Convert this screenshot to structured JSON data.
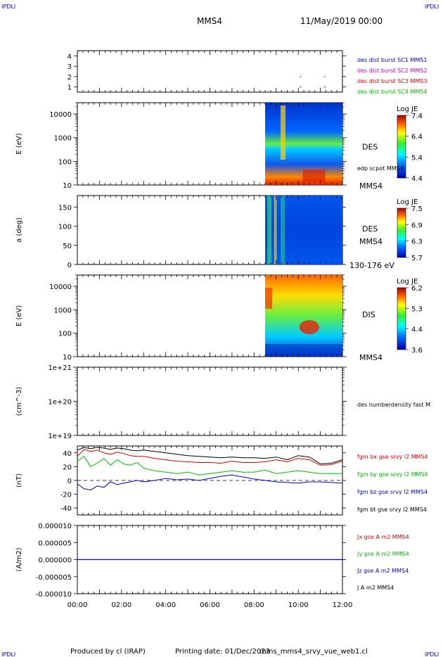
{
  "header": {
    "corner_tl": "IPDLI",
    "corner_tr": "IPDLI",
    "corner_bl": "IPDLI",
    "corner_br": "IPDLI",
    "spacecraft": "MMS4",
    "date": "11/May/2019 00:00"
  },
  "footer": {
    "producer": "Produced by cl (IRAP)",
    "printing_date": "Printing date: 01/Dec/2023",
    "file": "mms_mms4_srvy_vue_web1.cl"
  },
  "time_axis": {
    "labels": [
      "00:00",
      "02:00",
      "04:00",
      "06:00",
      "08:00",
      "10:00",
      "12:00"
    ],
    "range_hours": [
      0,
      12
    ]
  },
  "colors": {
    "blue": "#0000cc",
    "magenta": "#cc00cc",
    "red": "#dd0000",
    "green": "#00bb00",
    "black": "#000000",
    "header_corner": "#0000cc"
  },
  "chart_data": [
    {
      "type": "scatter",
      "panel": "burst",
      "ylim": [
        0.5,
        4.5
      ],
      "yticks": [
        "1",
        "2",
        "3",
        "4"
      ],
      "legend": [
        {
          "label": "des dist burst SC1 MMS1",
          "color": "#0000cc"
        },
        {
          "label": "des dist burst SC2 MMS2",
          "color": "#cc00cc"
        },
        {
          "label": "des dist burst SC3 MMS3",
          "color": "#dd0000"
        },
        {
          "label": "des dist burst SC4 MMS4",
          "color": "#00bb00"
        }
      ],
      "points": [
        {
          "x": 10.1,
          "y": 2.0,
          "color": "#dd0000"
        },
        {
          "x": 11.2,
          "y": 2.0,
          "color": "#dd0000"
        },
        {
          "x": 10.1,
          "y": 1.0,
          "color": "#0000cc"
        },
        {
          "x": 11.2,
          "y": 1.0,
          "color": "#0000cc"
        }
      ]
    },
    {
      "type": "heatmap",
      "panel": "des_energy",
      "ylabel": "E (eV)",
      "yscale": "log",
      "ylim": [
        10,
        30000
      ],
      "yticks": [
        "10",
        "100",
        "1000",
        "10000"
      ],
      "x_start_hours": 8.5,
      "right_label": "DES",
      "right_note": "edp scpot MMS4",
      "right_bottom": "MMS4",
      "colorbar": {
        "title": "Log JE",
        "ticks": [
          "7.4",
          "6.4",
          "5.4",
          "4.4"
        ]
      }
    },
    {
      "type": "heatmap",
      "panel": "des_pitch",
      "ylabel": "a (deg)",
      "ylim": [
        0,
        180
      ],
      "yticks": [
        "0",
        "50",
        "100",
        "150"
      ],
      "x_start_hours": 8.5,
      "right_label": "DES",
      "right_mid": "MMS4",
      "right_bottom": "130-176 eV",
      "colorbar": {
        "title": "Log JE",
        "ticks": [
          "7.5",
          "6.9",
          "6.3",
          "5.7"
        ]
      }
    },
    {
      "type": "heatmap",
      "panel": "dis_energy",
      "ylabel": "E (eV)",
      "yscale": "log",
      "ylim": [
        10,
        30000
      ],
      "yticks": [
        "10",
        "100",
        "1000",
        "10000"
      ],
      "x_start_hours": 8.5,
      "right_label": "DIS",
      "right_bottom": "MMS4",
      "colorbar": {
        "title": "Log JE",
        "ticks": [
          "6.2",
          "5.3",
          "4.4",
          "3.6"
        ]
      }
    },
    {
      "type": "line",
      "panel": "density",
      "ylabel": "(cm^-3)",
      "yscale": "log",
      "yticks": [
        "1e+19",
        "1e+20",
        "1e+21"
      ],
      "legend": [
        {
          "label": "des numberdensity fast M",
          "color": "#000000"
        }
      ],
      "series": []
    },
    {
      "type": "line",
      "panel": "fgm",
      "ylabel": "(nT)",
      "ylim": [
        -50,
        50
      ],
      "yticks": [
        "40",
        "20",
        "0",
        "-20",
        "-40"
      ],
      "legend": [
        {
          "label": "fgm bx gse srvy l2 MMS4",
          "color": "#dd0000"
        },
        {
          "label": "fgm by gse srvy l2 MMS4",
          "color": "#00bb00"
        },
        {
          "label": "fgm bz gse srvy l2 MMS4",
          "color": "#0000cc"
        },
        {
          "label": "fgm bt gse srvy l2 MMS4",
          "color": "#000000"
        }
      ],
      "series": [
        {
          "color": "#000000",
          "x": [
            0,
            0.3,
            0.6,
            0.9,
            1.2,
            1.5,
            1.8,
            2.1,
            2.4,
            2.7,
            3.0,
            3.5,
            4.0,
            4.5,
            5.0,
            5.5,
            6.0,
            6.5,
            7.0,
            7.5,
            8.0,
            8.5,
            9.0,
            9.5,
            10.0,
            10.5,
            11.0,
            11.5,
            12.0
          ],
          "y": [
            44,
            48,
            46,
            48,
            47,
            45,
            47,
            46,
            44,
            43,
            44,
            42,
            40,
            38,
            36,
            35,
            34,
            33,
            34,
            33,
            33,
            32,
            34,
            30,
            36,
            34,
            24,
            25,
            30
          ]
        },
        {
          "color": "#dd0000",
          "x": [
            0,
            0.3,
            0.6,
            0.9,
            1.2,
            1.5,
            1.8,
            2.1,
            2.4,
            2.7,
            3.0,
            3.5,
            4.0,
            4.5,
            5.0,
            5.5,
            6.0,
            6.5,
            7.0,
            7.5,
            8.0,
            8.5,
            9.0,
            9.5,
            10.0,
            10.5,
            11.0,
            11.5,
            12.0
          ],
          "y": [
            35,
            45,
            42,
            44,
            40,
            38,
            41,
            39,
            36,
            35,
            35,
            32,
            30,
            28,
            27,
            26,
            26,
            25,
            28,
            26,
            26,
            27,
            30,
            27,
            32,
            30,
            22,
            23,
            28
          ]
        },
        {
          "color": "#00bb00",
          "x": [
            0,
            0.3,
            0.6,
            0.9,
            1.2,
            1.5,
            1.8,
            2.1,
            2.4,
            2.7,
            3.0,
            3.5,
            4.0,
            4.5,
            5.0,
            5.5,
            6.0,
            6.5,
            7.0,
            7.5,
            8.0,
            8.5,
            9.0,
            9.5,
            10.0,
            10.5,
            11.0,
            11.5,
            12.0
          ],
          "y": [
            28,
            35,
            20,
            25,
            32,
            22,
            30,
            24,
            22,
            26,
            18,
            14,
            12,
            10,
            12,
            8,
            10,
            12,
            14,
            12,
            12,
            15,
            10,
            12,
            14,
            12,
            10,
            10,
            10
          ]
        },
        {
          "color": "#0000cc",
          "x": [
            0,
            0.3,
            0.6,
            0.9,
            1.2,
            1.5,
            1.8,
            2.1,
            2.4,
            2.7,
            3.0,
            3.5,
            4.0,
            4.5,
            5.0,
            5.5,
            6.0,
            6.5,
            7.0,
            7.5,
            8.0,
            8.5,
            9.0,
            9.5,
            10.0,
            10.5,
            11.0,
            11.5,
            12.0
          ],
          "y": [
            -5,
            -12,
            -14,
            -8,
            -10,
            -2,
            -6,
            -4,
            -2,
            0,
            -2,
            0,
            3,
            1,
            2,
            0,
            3,
            6,
            8,
            5,
            2,
            0,
            -2,
            -3,
            -4,
            -2,
            -2,
            -3,
            -4
          ]
        }
      ]
    },
    {
      "type": "line",
      "panel": "current",
      "ylabel": "(A/m2)",
      "ylim": [
        -1e-05,
        1e-05
      ],
      "yticks": [
        "0.000010",
        "0.000005",
        "0.000000",
        "-0.000005",
        "-0.000010"
      ],
      "legend": [
        {
          "label": "Jx gse A m2 MMS4",
          "color": "#dd0000"
        },
        {
          "label": "Jy gse A m2 MMS4",
          "color": "#00bb00"
        },
        {
          "label": "Jz gse A m2 MMS4",
          "color": "#0000cc"
        },
        {
          "label": "J A m2 MMS4",
          "color": "#000000"
        }
      ],
      "series": [
        {
          "color": "#0000cc",
          "x": [
            0,
            12
          ],
          "y": [
            0,
            0
          ]
        }
      ]
    }
  ]
}
